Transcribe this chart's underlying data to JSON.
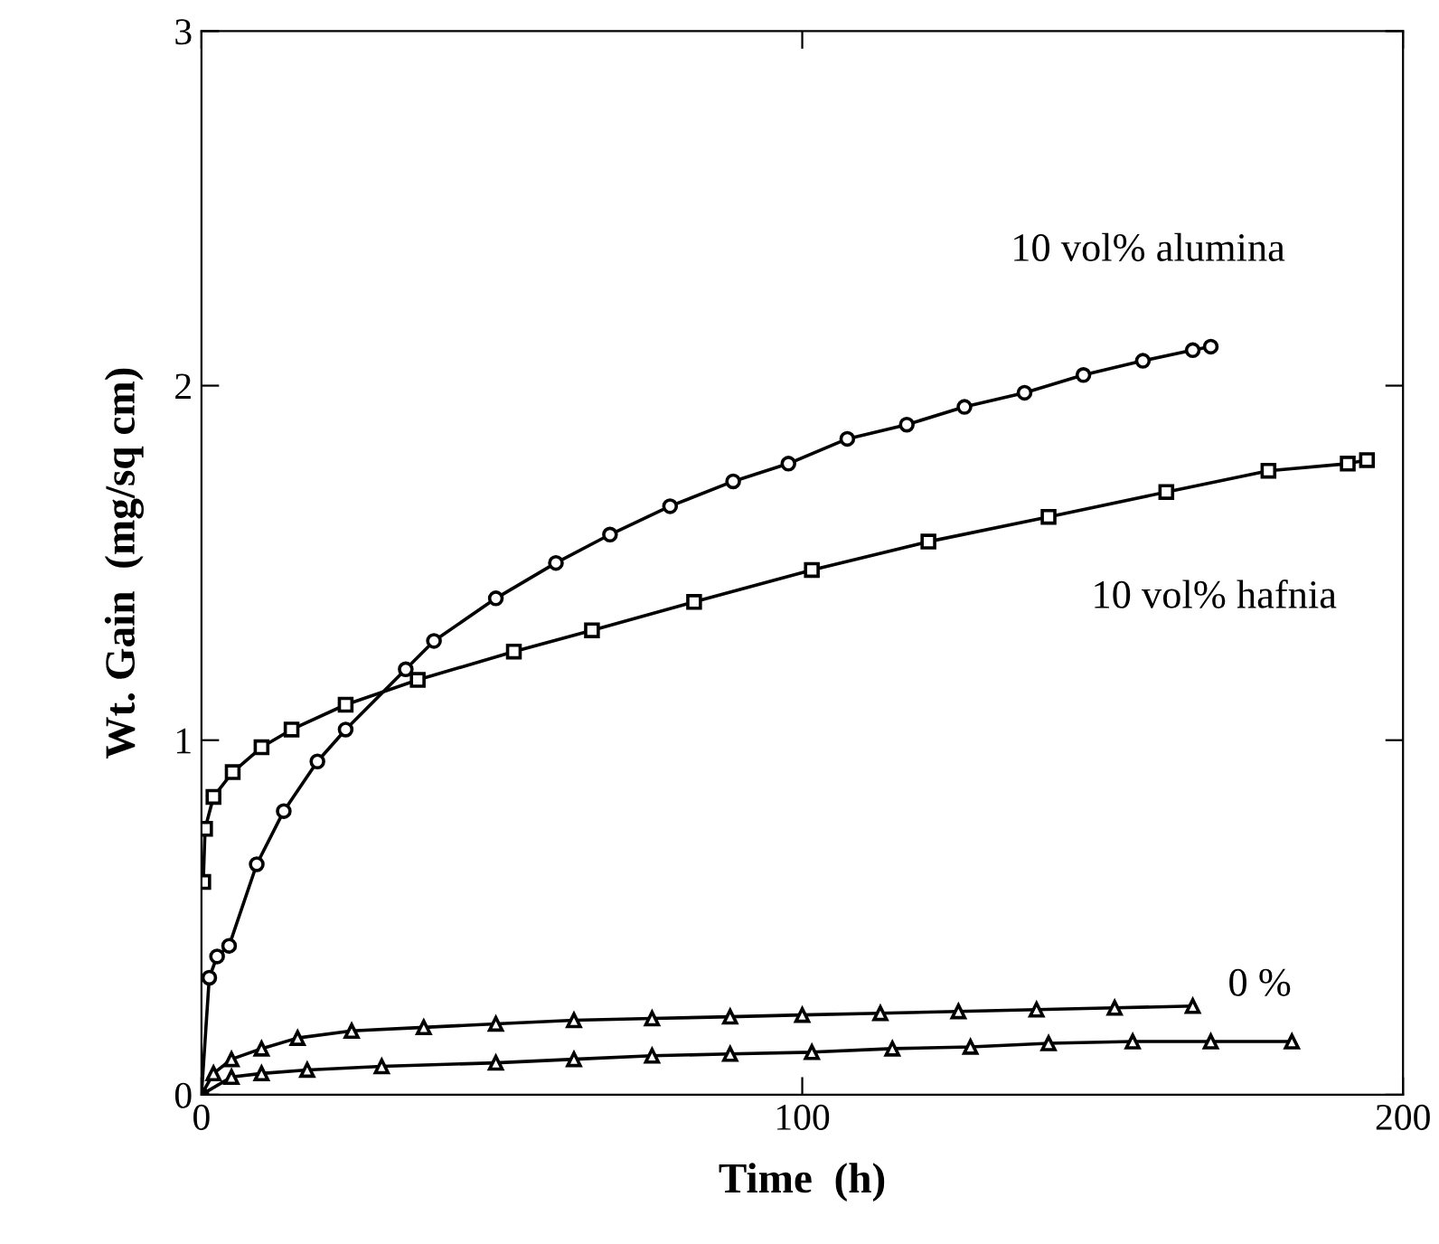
{
  "chart_data": {
    "type": "line",
    "xlabel": "Time  (h)",
    "ylabel": "Wt. Gain  (mg/sq cm)",
    "xlim": [
      0,
      200
    ],
    "ylim": [
      0,
      3
    ],
    "xticks": [
      0,
      100,
      200
    ],
    "yticks": [
      0,
      1,
      2,
      3
    ],
    "grid": false,
    "legend": false,
    "series": [
      {
        "name": "10 vol% alumina",
        "color": "#000000",
        "marker": "circle",
        "x": [
          0,
          1.3,
          2.6,
          4.6,
          9.2,
          13.7,
          19.3,
          24,
          34,
          38.7,
          49,
          59,
          68,
          78,
          88.5,
          97.7,
          107.5,
          117.4,
          127,
          137,
          146.8,
          156.7,
          165,
          168
        ],
        "values": [
          0,
          0.33,
          0.39,
          0.42,
          0.65,
          0.8,
          0.94,
          1.03,
          1.2,
          1.28,
          1.4,
          1.5,
          1.58,
          1.66,
          1.73,
          1.78,
          1.85,
          1.89,
          1.94,
          1.98,
          2.03,
          2.07,
          2.1,
          2.11
        ]
      },
      {
        "name": "10 vol% hafnia",
        "color": "#000000",
        "marker": "square",
        "x": [
          0.3,
          0.6,
          2,
          5.2,
          10,
          15,
          24,
          36,
          52,
          65,
          82,
          101.6,
          121,
          141,
          160.6,
          177.6,
          190.8,
          194
        ],
        "values": [
          0.6,
          0.75,
          0.84,
          0.91,
          0.98,
          1.03,
          1.1,
          1.17,
          1.25,
          1.31,
          1.39,
          1.48,
          1.56,
          1.63,
          1.7,
          1.76,
          1.78,
          1.79
        ]
      },
      {
        "name": "0 %",
        "color": "#000000",
        "marker": "triangle",
        "x": [
          0,
          2,
          5,
          10,
          16,
          25,
          37,
          49,
          62,
          75,
          88,
          100,
          113,
          126,
          139,
          152,
          165
        ],
        "values": [
          0,
          0.06,
          0.1,
          0.13,
          0.16,
          0.18,
          0.19,
          0.2,
          0.21,
          0.215,
          0.22,
          0.225,
          0.23,
          0.235,
          0.24,
          0.245,
          0.25
        ]
      },
      {
        "color": "#000000",
        "marker": "triangle",
        "x": [
          0,
          5,
          10,
          17.6,
          30,
          49,
          62,
          75,
          88,
          101.6,
          115,
          128,
          141,
          155,
          168,
          181.5
        ],
        "values": [
          0,
          0.05,
          0.06,
          0.07,
          0.08,
          0.09,
          0.1,
          0.11,
          0.115,
          0.12,
          0.13,
          0.135,
          0.145,
          0.15,
          0.15,
          0.15
        ]
      }
    ]
  }
}
